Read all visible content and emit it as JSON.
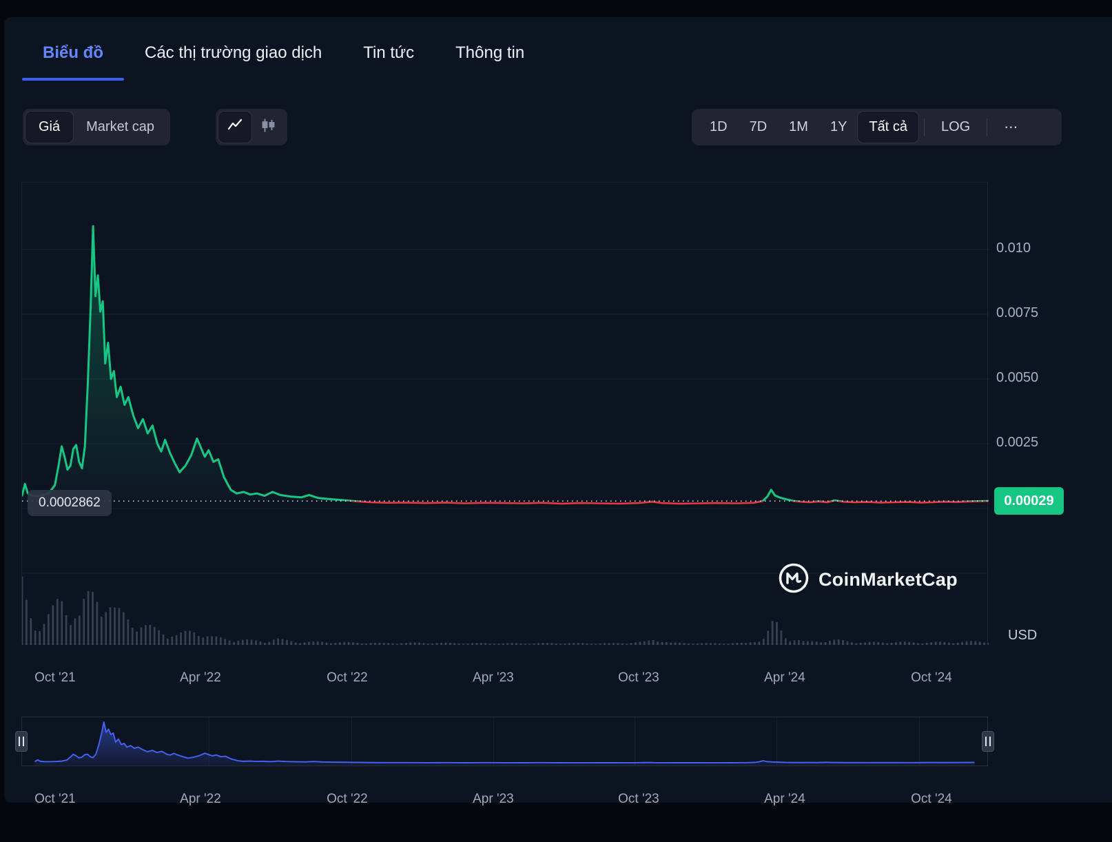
{
  "colors": {
    "accent_blue": "#3861fb",
    "tab_active_blue": "#6188ff",
    "up_green": "#16c784",
    "down_red": "#ea3943",
    "badge_green": "#16c784",
    "panel_bg": "#0d1421",
    "control_bg": "#222531"
  },
  "tabs": [
    {
      "label": "Biểu đồ",
      "active": true
    },
    {
      "label": "Các thị trường giao dịch",
      "active": false
    },
    {
      "label": "Tin tức",
      "active": false
    },
    {
      "label": "Thông tin",
      "active": false
    }
  ],
  "toolbar": {
    "metric_options": [
      {
        "label": "Giá",
        "selected": true
      },
      {
        "label": "Market cap",
        "selected": false
      }
    ],
    "chart_type": {
      "selected": "line",
      "icons": [
        "line-chart",
        "candlestick-chart"
      ]
    },
    "ranges": [
      {
        "label": "1D",
        "selected": false
      },
      {
        "label": "7D",
        "selected": false
      },
      {
        "label": "1M",
        "selected": false
      },
      {
        "label": "1Y",
        "selected": false
      },
      {
        "label": "Tất cả",
        "selected": true
      }
    ],
    "log_label": "LOG",
    "more_label": "⋯"
  },
  "price_chart": {
    "current_price_label": "0.0002862",
    "current_price_badge": "0.00029",
    "unit_label": "USD",
    "watermark": "CoinMarketCap"
  },
  "chart_data": {
    "type": "line",
    "colors": {
      "up": "#16c784",
      "down": "#ea3943",
      "navigator": "#4461f2",
      "volume": "#8a93ad"
    },
    "threshold_price": 0.0002862,
    "y_axis": {
      "min": 0,
      "max": 0.0126,
      "ticks": [
        {
          "label": "0.010",
          "value": 0.01
        },
        {
          "label": "0.0075",
          "value": 0.0075
        },
        {
          "label": "0.0050",
          "value": 0.005
        },
        {
          "label": "0.0025",
          "value": 0.0025
        }
      ]
    },
    "x_axis": {
      "labels": [
        {
          "label": "Oct '21",
          "pos": 0.0349
        },
        {
          "label": "Apr '22",
          "pos": 0.1853
        },
        {
          "label": "Oct '22",
          "pos": 0.3371
        },
        {
          "label": "Apr '23",
          "pos": 0.4882
        },
        {
          "label": "Oct '23",
          "pos": 0.6386
        },
        {
          "label": "Apr '24",
          "pos": 0.7897
        },
        {
          "label": "Oct '24",
          "pos": 0.9415
        }
      ]
    },
    "series": [
      {
        "name": "Giá USD",
        "points": [
          [
            0.0,
            0.0005
          ],
          [
            0.003,
            0.00095
          ],
          [
            0.006,
            0.00058
          ],
          [
            0.01,
            0.0005
          ],
          [
            0.016,
            0.00047
          ],
          [
            0.022,
            0.00052
          ],
          [
            0.028,
            0.0006
          ],
          [
            0.034,
            0.0009
          ],
          [
            0.038,
            0.0017
          ],
          [
            0.041,
            0.0024
          ],
          [
            0.044,
            0.002
          ],
          [
            0.047,
            0.0015
          ],
          [
            0.05,
            0.00165
          ],
          [
            0.053,
            0.0023
          ],
          [
            0.056,
            0.00245
          ],
          [
            0.059,
            0.0018
          ],
          [
            0.062,
            0.00155
          ],
          [
            0.065,
            0.0024
          ],
          [
            0.068,
            0.0048
          ],
          [
            0.071,
            0.0078
          ],
          [
            0.0735,
            0.0109
          ],
          [
            0.076,
            0.0082
          ],
          [
            0.0785,
            0.009
          ],
          [
            0.081,
            0.0076
          ],
          [
            0.0835,
            0.008
          ],
          [
            0.086,
            0.0056
          ],
          [
            0.089,
            0.0064
          ],
          [
            0.092,
            0.005
          ],
          [
            0.095,
            0.0053
          ],
          [
            0.098,
            0.0043
          ],
          [
            0.102,
            0.0047
          ],
          [
            0.106,
            0.004
          ],
          [
            0.11,
            0.0043
          ],
          [
            0.115,
            0.0036
          ],
          [
            0.12,
            0.0031
          ],
          [
            0.125,
            0.00345
          ],
          [
            0.13,
            0.0029
          ],
          [
            0.135,
            0.0032
          ],
          [
            0.14,
            0.0025
          ],
          [
            0.144,
            0.0022
          ],
          [
            0.148,
            0.00265
          ],
          [
            0.153,
            0.00215
          ],
          [
            0.158,
            0.00175
          ],
          [
            0.163,
            0.0014
          ],
          [
            0.169,
            0.00165
          ],
          [
            0.175,
            0.00205
          ],
          [
            0.181,
            0.0027
          ],
          [
            0.185,
            0.00235
          ],
          [
            0.189,
            0.002
          ],
          [
            0.193,
            0.00225
          ],
          [
            0.198,
            0.0018
          ],
          [
            0.203,
            0.0019
          ],
          [
            0.209,
            0.0012
          ],
          [
            0.216,
            0.00072
          ],
          [
            0.222,
            0.00058
          ],
          [
            0.229,
            0.00064
          ],
          [
            0.236,
            0.00054
          ],
          [
            0.243,
            0.00058
          ],
          [
            0.251,
            0.00049
          ],
          [
            0.259,
            0.00064
          ],
          [
            0.267,
            0.00052
          ],
          [
            0.278,
            0.00046
          ],
          [
            0.289,
            0.00043
          ],
          [
            0.297,
            0.00052
          ],
          [
            0.306,
            0.00041
          ],
          [
            0.316,
            0.00037
          ],
          [
            0.33,
            0.00033
          ],
          [
            0.345,
            0.00028
          ],
          [
            0.36,
            0.00024
          ],
          [
            0.378,
            0.00022
          ],
          [
            0.398,
            0.00023
          ],
          [
            0.418,
            0.00021
          ],
          [
            0.438,
            0.00023
          ],
          [
            0.458,
            0.0002
          ],
          [
            0.478,
            0.00022
          ],
          [
            0.498,
            0.00021
          ],
          [
            0.518,
            0.0002
          ],
          [
            0.538,
            0.00022
          ],
          [
            0.558,
            0.00019
          ],
          [
            0.578,
            0.00021
          ],
          [
            0.598,
            0.0002
          ],
          [
            0.618,
            0.00019
          ],
          [
            0.638,
            0.00021
          ],
          [
            0.652,
            0.00026
          ],
          [
            0.662,
            0.00021
          ],
          [
            0.68,
            0.00019
          ],
          [
            0.7,
            0.0002
          ],
          [
            0.72,
            0.00021
          ],
          [
            0.74,
            0.0002
          ],
          [
            0.757,
            0.00022
          ],
          [
            0.766,
            0.00028
          ],
          [
            0.771,
            0.00046
          ],
          [
            0.775,
            0.00072
          ],
          [
            0.779,
            0.0005
          ],
          [
            0.785,
            0.00041
          ],
          [
            0.791,
            0.00035
          ],
          [
            0.798,
            0.00029
          ],
          [
            0.806,
            0.00026
          ],
          [
            0.815,
            0.00024
          ],
          [
            0.824,
            0.00027
          ],
          [
            0.833,
            0.00024
          ],
          [
            0.841,
            0.00031
          ],
          [
            0.85,
            0.00026
          ],
          [
            0.861,
            0.00024
          ],
          [
            0.874,
            0.00025
          ],
          [
            0.888,
            0.00023
          ],
          [
            0.902,
            0.00024
          ],
          [
            0.916,
            0.00025
          ],
          [
            0.93,
            0.00023
          ],
          [
            0.9415,
            0.00024
          ],
          [
            0.954,
            0.00026
          ],
          [
            0.967,
            0.00025
          ],
          [
            0.981,
            0.00027
          ],
          [
            1.0,
            0.00029
          ]
        ]
      }
    ],
    "volume_profile": [
      [
        0,
        0.95
      ],
      [
        0.006,
        0.6
      ],
      [
        0.012,
        0.4
      ],
      [
        0.02,
        0.32
      ],
      [
        0.03,
        0.5
      ],
      [
        0.04,
        0.75
      ],
      [
        0.05,
        0.6
      ],
      [
        0.06,
        0.45
      ],
      [
        0.065,
        0.7
      ],
      [
        0.075,
        0.85
      ],
      [
        0.085,
        0.8
      ],
      [
        0.095,
        0.55
      ],
      [
        0.105,
        0.48
      ],
      [
        0.115,
        0.4
      ],
      [
        0.125,
        0.32
      ],
      [
        0.14,
        0.24
      ],
      [
        0.16,
        0.16
      ],
      [
        0.181,
        0.24
      ],
      [
        0.195,
        0.13
      ],
      [
        0.21,
        0.1
      ],
      [
        0.23,
        0.08
      ],
      [
        0.252,
        0.06
      ],
      [
        0.262,
        0.1
      ],
      [
        0.285,
        0.05
      ],
      [
        0.31,
        0.05
      ],
      [
        0.34,
        0.04
      ],
      [
        0.37,
        0.03
      ],
      [
        0.41,
        0.035
      ],
      [
        0.46,
        0.028
      ],
      [
        0.51,
        0.025
      ],
      [
        0.56,
        0.03
      ],
      [
        0.61,
        0.025
      ],
      [
        0.645,
        0.05
      ],
      [
        0.655,
        0.1
      ],
      [
        0.67,
        0.035
      ],
      [
        0.71,
        0.025
      ],
      [
        0.75,
        0.03
      ],
      [
        0.768,
        0.12
      ],
      [
        0.778,
        0.38
      ],
      [
        0.79,
        0.14
      ],
      [
        0.81,
        0.05
      ],
      [
        0.842,
        0.08
      ],
      [
        0.87,
        0.04
      ],
      [
        0.9,
        0.05
      ],
      [
        0.93,
        0.04
      ],
      [
        0.965,
        0.05
      ],
      [
        1,
        0.06
      ]
    ],
    "navigator": {
      "max_price": 0.0109
    }
  }
}
